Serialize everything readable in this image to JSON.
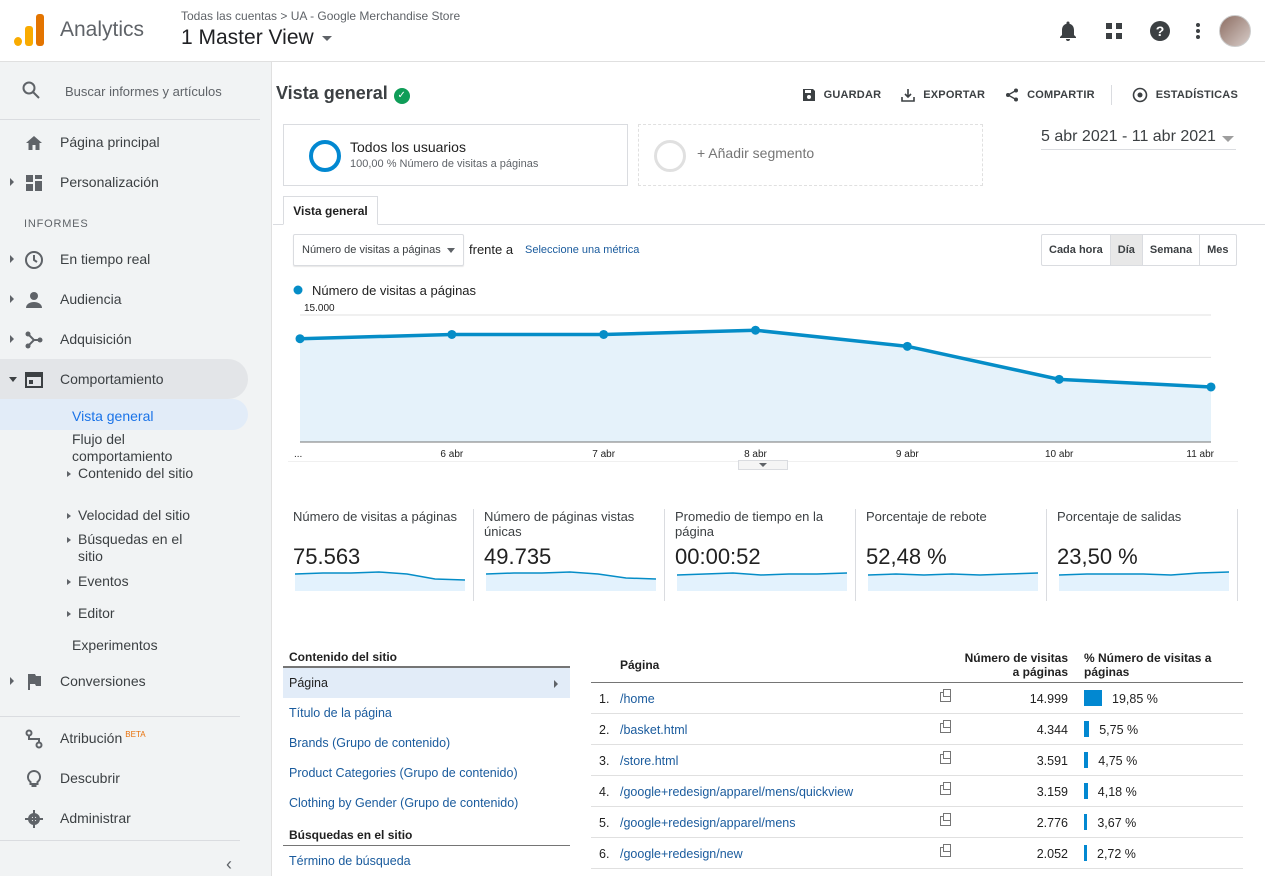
{
  "topbar": {
    "app_name": "Analytics",
    "breadcrumb": "Todas las cuentas > UA - Google Merchandise Store",
    "view_name": "1 Master View"
  },
  "sidebar": {
    "search_placeholder": "Buscar informes y artículos",
    "home": "Página principal",
    "custom": "Personalización",
    "section": "INFORMES",
    "realtime": "En tiempo real",
    "audience": "Audiencia",
    "acquisition": "Adquisición",
    "behavior": "Comportamiento",
    "behavior_sub": {
      "overview": "Vista general",
      "flow": "Flujo del comportamiento",
      "site_content": "Contenido del sitio",
      "site_speed": "Velocidad del sitio",
      "site_search": "Búsquedas en el sitio",
      "events": "Eventos",
      "publisher": "Editor",
      "experiments": "Experimentos"
    },
    "conversions": "Conversiones",
    "attribution": "Atribución",
    "attribution_badge": "BETA",
    "discover": "Descubrir",
    "admin": "Administrar"
  },
  "header": {
    "title": "Vista general",
    "save": "GUARDAR",
    "export": "EXPORTAR",
    "share": "COMPARTIR",
    "insights": "ESTADÍSTICAS"
  },
  "segments": {
    "seg1_name": "Todos los usuarios",
    "seg1_sub": "100,00 % Número de visitas a páginas",
    "add_segment": "+ Añadir segmento"
  },
  "date_range": "5 abr 2021 - 11 abr 2021",
  "tab": "Vista general",
  "controls": {
    "metric": "Número de visitas a páginas",
    "vs": "frente a",
    "pick_metric": "Seleccione una métrica",
    "granularity": [
      "Cada hora",
      "Día",
      "Semana",
      "Mes"
    ],
    "granularity_selected": "Día"
  },
  "chart_data": {
    "type": "area",
    "series": [
      {
        "name": "Número de visitas a páginas",
        "values": [
          12200,
          12700,
          12700,
          13200,
          11300,
          7400,
          6500
        ]
      }
    ],
    "x": [
      "...",
      "6 abr",
      "7 abr",
      "8 abr",
      "9 abr",
      "10 abr",
      "11 abr"
    ],
    "y_ticks": [
      "15.000",
      "10.000",
      "5.000"
    ],
    "ylim": [
      0,
      15000
    ],
    "color": "#058dc7"
  },
  "kpis": [
    {
      "label": "Número de visitas a páginas",
      "value": "75.563"
    },
    {
      "label": "Número de páginas vistas únicas",
      "value": "49.735"
    },
    {
      "label": "Promedio de tiempo en la página",
      "value": "00:00:52"
    },
    {
      "label": "Porcentaje de rebote",
      "value": "52,48 %"
    },
    {
      "label": "Porcentaje de salidas",
      "value": "23,50 %"
    }
  ],
  "left_table": {
    "header": "Contenido del sitio",
    "rows": [
      "Página",
      "Título de la página",
      "Brands (Grupo de contenido)",
      "Product Categories (Grupo de contenido)",
      "Clothing by Gender (Grupo de contenido)"
    ],
    "header2": "Búsquedas en el sitio",
    "row2": "Término de búsqueda"
  },
  "right_table": {
    "col_page": "Página",
    "col_num": "Número de visitas a páginas",
    "col_pct": "% Número de visitas a páginas",
    "rows": [
      {
        "idx": "1.",
        "page": "/home",
        "num": "14.999",
        "pct": "19,85 %",
        "share": 19.85
      },
      {
        "idx": "2.",
        "page": "/basket.html",
        "num": "4.344",
        "pct": "5,75 %",
        "share": 5.75
      },
      {
        "idx": "3.",
        "page": "/store.html",
        "num": "3.591",
        "pct": "4,75 %",
        "share": 4.75
      },
      {
        "idx": "4.",
        "page": "/google+redesign/apparel/mens/quickview",
        "num": "3.159",
        "pct": "4,18 %",
        "share": 4.18
      },
      {
        "idx": "5.",
        "page": "/google+redesign/apparel/mens",
        "num": "2.776",
        "pct": "3,67 %",
        "share": 3.67
      },
      {
        "idx": "6.",
        "page": "/google+redesign/new",
        "num": "2.052",
        "pct": "2,72 %",
        "share": 2.72
      }
    ]
  }
}
